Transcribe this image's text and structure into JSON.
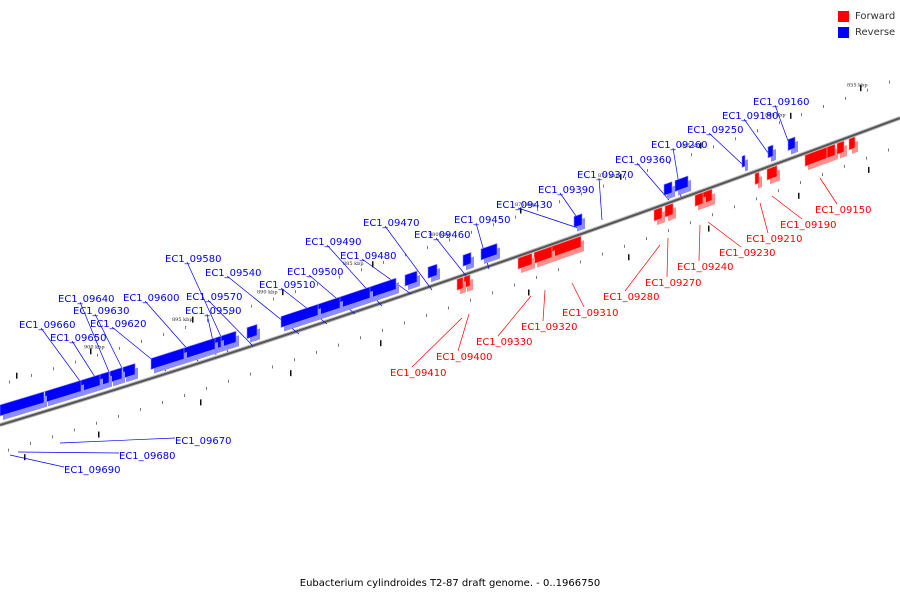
{
  "legend": {
    "forward": {
      "label": "Forward",
      "color": "#ff0000"
    },
    "reverse": {
      "label": "Reverse",
      "color": "#0000ff"
    }
  },
  "caption": "Eubacterium cylindroides T2-87 draft genome. - 0..1966750",
  "scale_ticks": [
    "855 kbp",
    "860 kbp",
    "865 kbp",
    "870 kbp",
    "875 kbp",
    "880 kbp",
    "885 kbp",
    "890 kbp",
    "895 kbp",
    "900 kbp"
  ],
  "forward_genes": [
    "EC1_09150",
    "EC1_09190",
    "EC1_09210",
    "EC1_09230",
    "EC1_09240",
    "EC1_09270",
    "EC1_09280",
    "EC1_09310",
    "EC1_09320",
    "EC1_09330",
    "EC1_09400",
    "EC1_09410"
  ],
  "reverse_genes": [
    "EC1_09160",
    "EC1_09180",
    "EC1_09250",
    "EC1_09260",
    "EC1_09360",
    "EC1_09370",
    "EC1_09390",
    "EC1_09430",
    "EC1_09450",
    "EC1_09460",
    "EC1_09470",
    "EC1_09480",
    "EC1_09490",
    "EC1_09500",
    "EC1_09510",
    "EC1_09540",
    "EC1_09570",
    "EC1_09580",
    "EC1_09590",
    "EC1_09600",
    "EC1_09620",
    "EC1_09630",
    "EC1_09640",
    "EC1_09650",
    "EC1_09660",
    "EC1_09670",
    "EC1_09680",
    "EC1_09690"
  ]
}
